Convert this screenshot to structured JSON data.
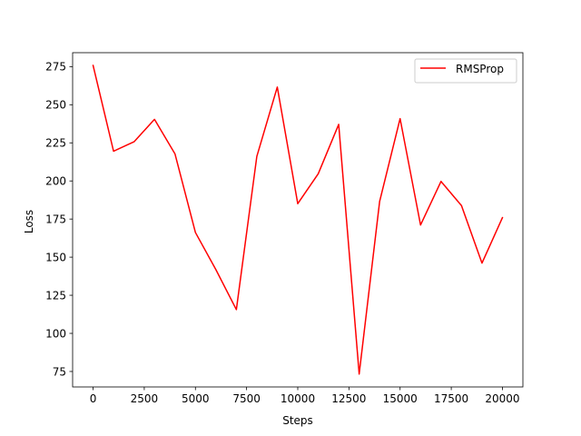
{
  "chart_data": {
    "type": "line",
    "xlabel": "Steps",
    "ylabel": "Loss",
    "xlim": [
      -1000,
      21000
    ],
    "ylim": [
      64.85,
      284.15
    ],
    "x_ticks": [
      0,
      2500,
      5000,
      7500,
      10000,
      12500,
      15000,
      17500,
      20000
    ],
    "y_ticks": [
      75,
      100,
      125,
      150,
      175,
      200,
      225,
      250,
      275
    ],
    "grid": false,
    "legend_position": "upper right",
    "series": [
      {
        "name": "RMSProp",
        "color": "#ff0000",
        "x": [
          0,
          1000,
          2000,
          3000,
          4000,
          5000,
          6000,
          7000,
          8000,
          9000,
          10000,
          11000,
          12000,
          13000,
          14000,
          15000,
          16000,
          17000,
          18000,
          19000,
          20000
        ],
        "y": [
          275.8,
          219.5,
          225.7,
          240.4,
          217.8,
          166.2,
          141.8,
          115.6,
          216.1,
          261.6,
          185.1,
          204.7,
          237.1,
          73.3,
          186.5,
          240.9,
          171.1,
          199.7,
          183.8,
          146.1,
          175.9
        ]
      }
    ]
  }
}
